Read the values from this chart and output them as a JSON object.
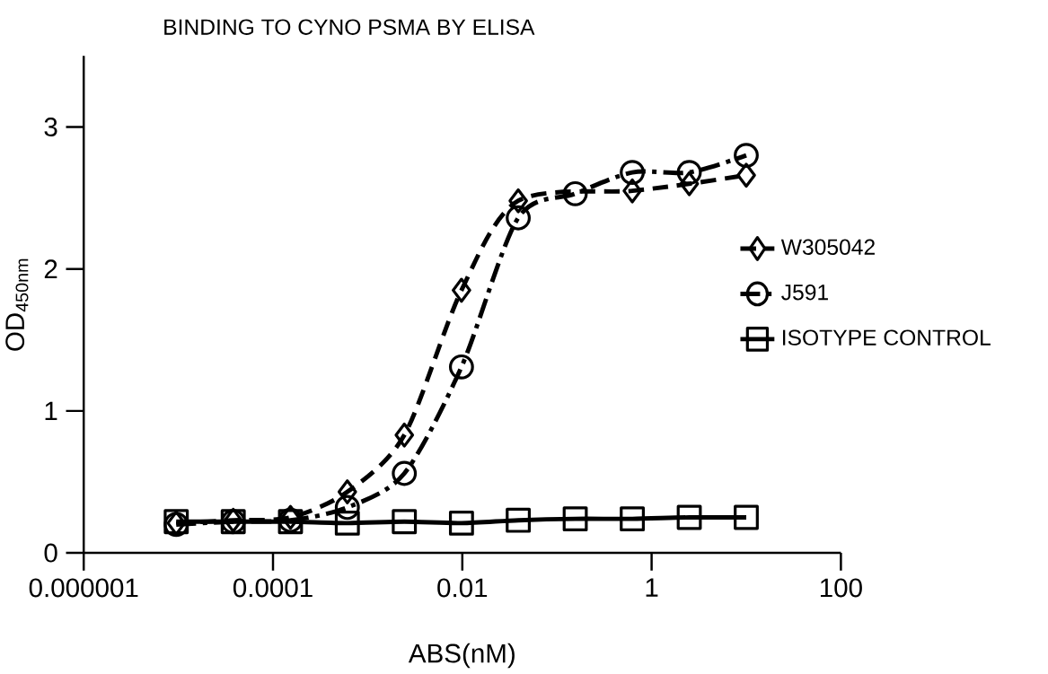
{
  "chart_data": {
    "type": "line",
    "title": "BINDING TO CYNO PSMA BY ELISA",
    "xlabel": "ABS(nM)",
    "ylabel": "OD$_{450nm}$",
    "log": "x",
    "x": [
      9.5e-06,
      3.8e-05,
      0.000153,
      0.00061,
      0.00244,
      0.0098,
      0.039,
      0.156,
      0.625,
      2.5,
      10
    ],
    "series": [
      {
        "name": "W305042",
        "color": "#000000",
        "marker": "diamond",
        "line_style": "dashed",
        "values": [
          0.21,
          0.23,
          0.25,
          0.43,
          0.83,
          1.85,
          2.48,
          null,
          2.55,
          2.6,
          2.66
        ]
      },
      {
        "name": "J591",
        "color": "#000000",
        "marker": "circle",
        "line_style": "dashdot",
        "values": [
          0.2,
          0.22,
          0.23,
          0.32,
          0.56,
          1.31,
          2.36,
          2.53,
          2.68,
          2.68,
          2.8
        ]
      },
      {
        "name": "ISOTYPE CONTROL",
        "color": "#000000",
        "marker": "square",
        "line_style": "solid",
        "values": [
          0.22,
          0.22,
          0.22,
          0.21,
          0.22,
          0.21,
          0.23,
          0.24,
          0.24,
          0.25,
          0.25
        ]
      }
    ],
    "xlim": [
      1e-06,
      100
    ],
    "xticks": [
      {
        "value": 1e-06,
        "label": "0.000001"
      },
      {
        "value": 0.0001,
        "label": "0.0001"
      },
      {
        "value": 0.01,
        "label": "0.01"
      },
      1,
      100
    ],
    "ylim": [
      0,
      3.5
    ],
    "yticks": [
      0,
      1,
      2,
      3
    ],
    "grid": false,
    "legend": "right"
  }
}
